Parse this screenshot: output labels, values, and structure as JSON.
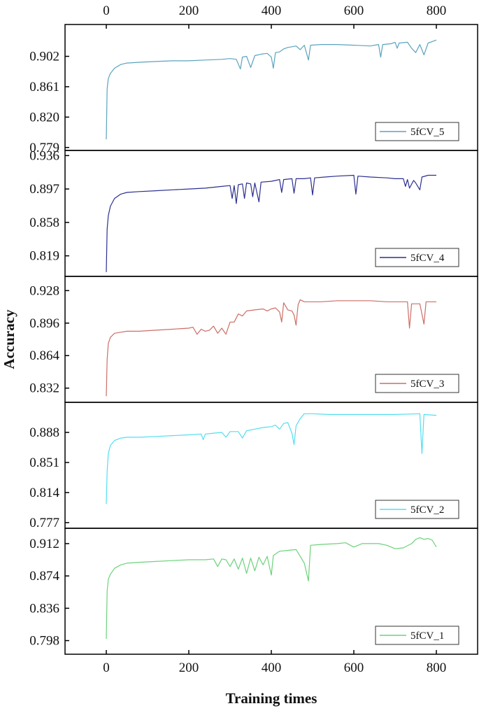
{
  "chart_data": {
    "type": "line",
    "x_axis": {
      "label": "Training times",
      "ticks": [
        0,
        200,
        400,
        600,
        800
      ],
      "range": [
        -100,
        900
      ],
      "top_ticks": true
    },
    "y_axis_label": "Accuracy",
    "grid": false,
    "panels": [
      {
        "series": "5fCV_5",
        "color": "#5ba3be",
        "y_ticks": [
          "0.779",
          "0.820",
          "0.861",
          "0.902"
        ],
        "y_range": [
          0.775,
          0.945
        ],
        "legend_position": "bottom-right",
        "points": [
          [
            0,
            0.79
          ],
          [
            2,
            0.858
          ],
          [
            5,
            0.872
          ],
          [
            10,
            0.879
          ],
          [
            20,
            0.886
          ],
          [
            35,
            0.891
          ],
          [
            50,
            0.893
          ],
          [
            80,
            0.894
          ],
          [
            120,
            0.895
          ],
          [
            160,
            0.896
          ],
          [
            200,
            0.896
          ],
          [
            240,
            0.897
          ],
          [
            280,
            0.898
          ],
          [
            300,
            0.899
          ],
          [
            315,
            0.898
          ],
          [
            325,
            0.885
          ],
          [
            330,
            0.901
          ],
          [
            340,
            0.902
          ],
          [
            350,
            0.887
          ],
          [
            360,
            0.903
          ],
          [
            375,
            0.905
          ],
          [
            390,
            0.906
          ],
          [
            400,
            0.901
          ],
          [
            405,
            0.886
          ],
          [
            410,
            0.907
          ],
          [
            420,
            0.908
          ],
          [
            430,
            0.912
          ],
          [
            440,
            0.914
          ],
          [
            450,
            0.915
          ],
          [
            460,
            0.916
          ],
          [
            470,
            0.911
          ],
          [
            480,
            0.917
          ],
          [
            490,
            0.897
          ],
          [
            495,
            0.917
          ],
          [
            520,
            0.918
          ],
          [
            560,
            0.918
          ],
          [
            600,
            0.917
          ],
          [
            640,
            0.916
          ],
          [
            660,
            0.918
          ],
          [
            665,
            0.901
          ],
          [
            670,
            0.918
          ],
          [
            690,
            0.919
          ],
          [
            700,
            0.921
          ],
          [
            705,
            0.913
          ],
          [
            710,
            0.92
          ],
          [
            730,
            0.921
          ],
          [
            740,
            0.913
          ],
          [
            750,
            0.907
          ],
          [
            760,
            0.918
          ],
          [
            770,
            0.904
          ],
          [
            780,
            0.92
          ],
          [
            790,
            0.922
          ],
          [
            800,
            0.924
          ]
        ]
      },
      {
        "series": "5fCV_4",
        "color": "#2b2f8f",
        "y_ticks": [
          "0.819",
          "0.858",
          "0.897",
          "0.936"
        ],
        "y_range": [
          0.795,
          0.942
        ],
        "legend_position": "bottom-right",
        "points": [
          [
            0,
            0.8
          ],
          [
            2,
            0.85
          ],
          [
            5,
            0.866
          ],
          [
            10,
            0.877
          ],
          [
            20,
            0.886
          ],
          [
            35,
            0.891
          ],
          [
            50,
            0.893
          ],
          [
            80,
            0.894
          ],
          [
            120,
            0.895
          ],
          [
            160,
            0.896
          ],
          [
            200,
            0.897
          ],
          [
            240,
            0.898
          ],
          [
            280,
            0.9
          ],
          [
            300,
            0.901
          ],
          [
            305,
            0.886
          ],
          [
            310,
            0.901
          ],
          [
            315,
            0.88
          ],
          [
            320,
            0.902
          ],
          [
            330,
            0.903
          ],
          [
            335,
            0.886
          ],
          [
            340,
            0.904
          ],
          [
            350,
            0.903
          ],
          [
            355,
            0.888
          ],
          [
            360,
            0.904
          ],
          [
            370,
            0.882
          ],
          [
            375,
            0.905
          ],
          [
            400,
            0.906
          ],
          [
            410,
            0.907
          ],
          [
            420,
            0.908
          ],
          [
            425,
            0.893
          ],
          [
            430,
            0.908
          ],
          [
            450,
            0.909
          ],
          [
            455,
            0.892
          ],
          [
            460,
            0.909
          ],
          [
            480,
            0.909
          ],
          [
            495,
            0.91
          ],
          [
            500,
            0.89
          ],
          [
            505,
            0.91
          ],
          [
            530,
            0.911
          ],
          [
            560,
            0.912
          ],
          [
            600,
            0.913
          ],
          [
            605,
            0.891
          ],
          [
            610,
            0.912
          ],
          [
            640,
            0.911
          ],
          [
            680,
            0.91
          ],
          [
            700,
            0.909
          ],
          [
            720,
            0.909
          ],
          [
            725,
            0.9
          ],
          [
            730,
            0.908
          ],
          [
            735,
            0.898
          ],
          [
            745,
            0.907
          ],
          [
            750,
            0.904
          ],
          [
            760,
            0.896
          ],
          [
            765,
            0.911
          ],
          [
            780,
            0.913
          ],
          [
            800,
            0.913
          ]
        ]
      },
      {
        "series": "5fCV_3",
        "color": "#cc6e66",
        "y_ticks": [
          "0.832",
          "0.864",
          "0.896",
          "0.928"
        ],
        "y_range": [
          0.818,
          0.942
        ],
        "legend_position": "bottom-right",
        "points": [
          [
            0,
            0.824
          ],
          [
            2,
            0.86
          ],
          [
            5,
            0.876
          ],
          [
            10,
            0.882
          ],
          [
            20,
            0.886
          ],
          [
            35,
            0.887
          ],
          [
            50,
            0.888
          ],
          [
            80,
            0.888
          ],
          [
            120,
            0.889
          ],
          [
            160,
            0.89
          ],
          [
            200,
            0.891
          ],
          [
            210,
            0.892
          ],
          [
            220,
            0.885
          ],
          [
            230,
            0.89
          ],
          [
            240,
            0.888
          ],
          [
            250,
            0.889
          ],
          [
            260,
            0.893
          ],
          [
            270,
            0.886
          ],
          [
            280,
            0.891
          ],
          [
            290,
            0.885
          ],
          [
            300,
            0.897
          ],
          [
            310,
            0.897
          ],
          [
            320,
            0.905
          ],
          [
            330,
            0.903
          ],
          [
            340,
            0.908
          ],
          [
            360,
            0.909
          ],
          [
            380,
            0.91
          ],
          [
            390,
            0.908
          ],
          [
            400,
            0.91
          ],
          [
            410,
            0.911
          ],
          [
            420,
            0.907
          ],
          [
            425,
            0.897
          ],
          [
            430,
            0.916
          ],
          [
            440,
            0.909
          ],
          [
            450,
            0.908
          ],
          [
            455,
            0.904
          ],
          [
            460,
            0.894
          ],
          [
            465,
            0.914
          ],
          [
            470,
            0.919
          ],
          [
            480,
            0.917
          ],
          [
            520,
            0.917
          ],
          [
            560,
            0.918
          ],
          [
            600,
            0.918
          ],
          [
            640,
            0.918
          ],
          [
            680,
            0.917
          ],
          [
            720,
            0.917
          ],
          [
            730,
            0.917
          ],
          [
            735,
            0.891
          ],
          [
            740,
            0.915
          ],
          [
            760,
            0.915
          ],
          [
            765,
            0.905
          ],
          [
            770,
            0.895
          ],
          [
            775,
            0.917
          ],
          [
            800,
            0.917
          ]
        ]
      },
      {
        "series": "5fCV_2",
        "color": "#52dff0",
        "y_ticks": [
          "0.777",
          "0.814",
          "0.851",
          "0.888"
        ],
        "y_range": [
          0.77,
          0.925
        ],
        "legend_position": "bottom-right",
        "points": [
          [
            0,
            0.8
          ],
          [
            2,
            0.84
          ],
          [
            5,
            0.862
          ],
          [
            10,
            0.872
          ],
          [
            20,
            0.878
          ],
          [
            35,
            0.881
          ],
          [
            50,
            0.882
          ],
          [
            80,
            0.882
          ],
          [
            120,
            0.883
          ],
          [
            160,
            0.884
          ],
          [
            200,
            0.885
          ],
          [
            230,
            0.886
          ],
          [
            235,
            0.879
          ],
          [
            240,
            0.886
          ],
          [
            260,
            0.887
          ],
          [
            280,
            0.888
          ],
          [
            290,
            0.882
          ],
          [
            300,
            0.889
          ],
          [
            320,
            0.889
          ],
          [
            330,
            0.881
          ],
          [
            340,
            0.89
          ],
          [
            360,
            0.892
          ],
          [
            380,
            0.894
          ],
          [
            400,
            0.895
          ],
          [
            410,
            0.897
          ],
          [
            420,
            0.892
          ],
          [
            430,
            0.899
          ],
          [
            440,
            0.9
          ],
          [
            450,
            0.887
          ],
          [
            455,
            0.873
          ],
          [
            460,
            0.896
          ],
          [
            470,
            0.905
          ],
          [
            480,
            0.911
          ],
          [
            500,
            0.911
          ],
          [
            540,
            0.91
          ],
          [
            580,
            0.91
          ],
          [
            620,
            0.91
          ],
          [
            660,
            0.91
          ],
          [
            700,
            0.91
          ],
          [
            760,
            0.911
          ],
          [
            765,
            0.862
          ],
          [
            770,
            0.91
          ],
          [
            800,
            0.909
          ]
        ]
      },
      {
        "series": "5fCV_1",
        "color": "#6cd27a",
        "y_ticks": [
          "0.798",
          "0.836",
          "0.874",
          "0.912"
        ],
        "y_range": [
          0.782,
          0.93
        ],
        "legend_position": "bottom-right",
        "points": [
          [
            0,
            0.8
          ],
          [
            2,
            0.856
          ],
          [
            5,
            0.87
          ],
          [
            10,
            0.876
          ],
          [
            20,
            0.883
          ],
          [
            35,
            0.887
          ],
          [
            50,
            0.889
          ],
          [
            80,
            0.89
          ],
          [
            120,
            0.891
          ],
          [
            160,
            0.892
          ],
          [
            200,
            0.893
          ],
          [
            240,
            0.893
          ],
          [
            260,
            0.894
          ],
          [
            270,
            0.885
          ],
          [
            280,
            0.894
          ],
          [
            290,
            0.893
          ],
          [
            300,
            0.885
          ],
          [
            310,
            0.894
          ],
          [
            320,
            0.882
          ],
          [
            330,
            0.895
          ],
          [
            340,
            0.877
          ],
          [
            350,
            0.895
          ],
          [
            360,
            0.88
          ],
          [
            370,
            0.896
          ],
          [
            380,
            0.887
          ],
          [
            390,
            0.897
          ],
          [
            400,
            0.875
          ],
          [
            405,
            0.898
          ],
          [
            420,
            0.903
          ],
          [
            440,
            0.904
          ],
          [
            460,
            0.905
          ],
          [
            470,
            0.897
          ],
          [
            480,
            0.889
          ],
          [
            490,
            0.868
          ],
          [
            495,
            0.91
          ],
          [
            520,
            0.911
          ],
          [
            560,
            0.912
          ],
          [
            580,
            0.913
          ],
          [
            600,
            0.908
          ],
          [
            620,
            0.912
          ],
          [
            660,
            0.912
          ],
          [
            680,
            0.91
          ],
          [
            700,
            0.906
          ],
          [
            720,
            0.907
          ],
          [
            740,
            0.912
          ],
          [
            750,
            0.917
          ],
          [
            760,
            0.919
          ],
          [
            770,
            0.917
          ],
          [
            780,
            0.918
          ],
          [
            790,
            0.916
          ],
          [
            800,
            0.908
          ]
        ]
      }
    ]
  }
}
